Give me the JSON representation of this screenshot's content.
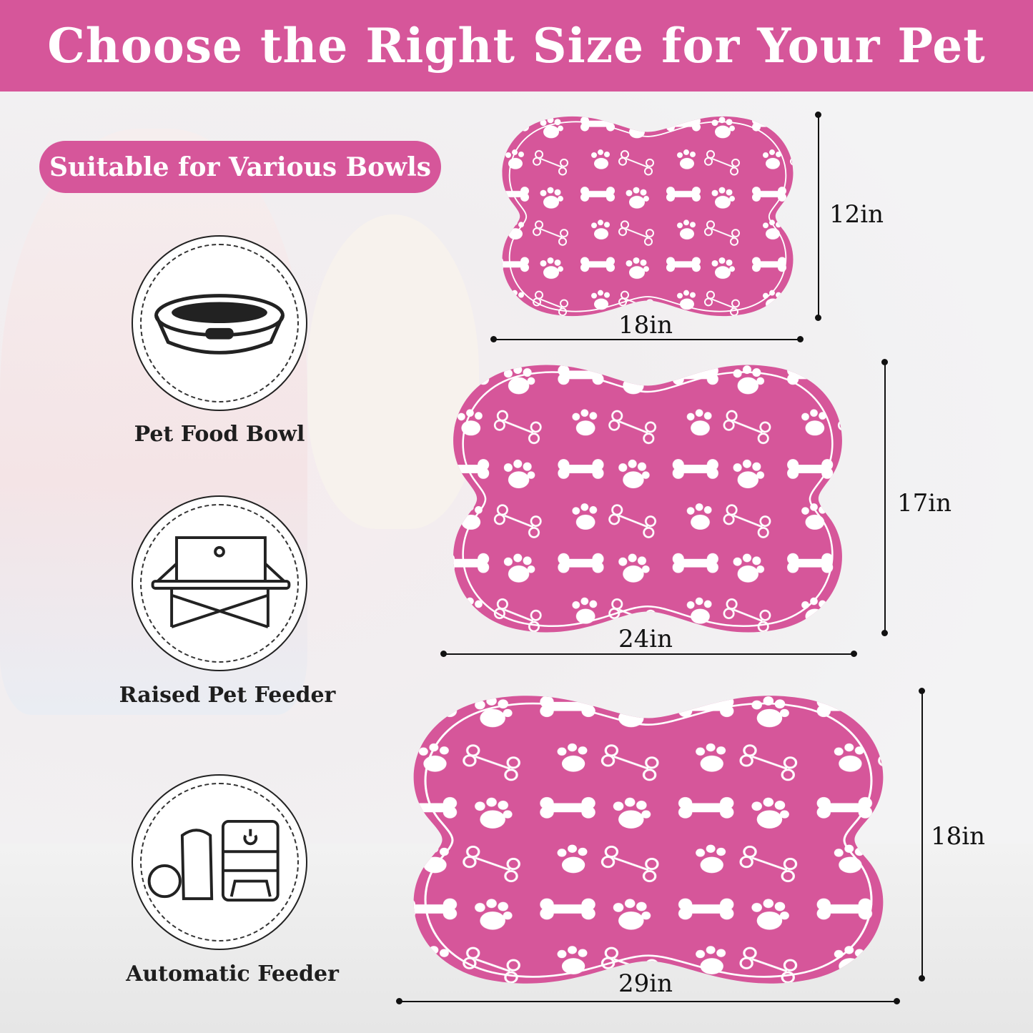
{
  "title": "Choose the Right Size for Your Pet",
  "subtitle": "Suitable for Various Bowls",
  "accent_color": "#d6569a",
  "bowls": [
    {
      "label": "Pet Food Bowl",
      "icon": "pet-food-bowl-icon"
    },
    {
      "label": "Raised Pet Feeder",
      "icon": "raised-feeder-icon"
    },
    {
      "label": "Automatic Feeder",
      "icon": "automatic-feeder-icon"
    }
  ],
  "sizes": [
    {
      "width": "18in",
      "height": "12in"
    },
    {
      "width": "24in",
      "height": "17in"
    },
    {
      "width": "29in",
      "height": "18in"
    }
  ]
}
